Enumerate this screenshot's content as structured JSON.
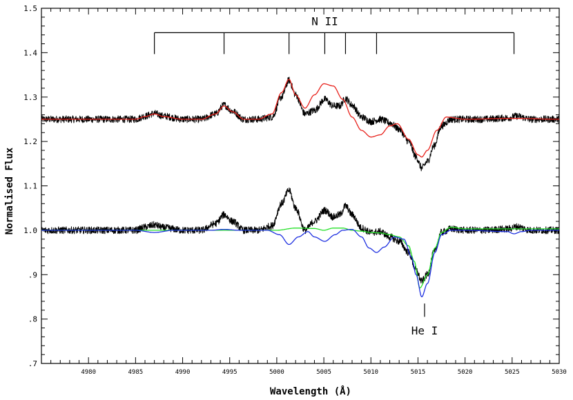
{
  "chart_data": {
    "type": "line",
    "xlabel": "Wavelength (Å)",
    "ylabel": "Normalised Flux",
    "xlim": [
      4975,
      5030
    ],
    "ylim": [
      0.7,
      1.5
    ],
    "x_ticks": [
      4980,
      4985,
      4990,
      4995,
      5000,
      5005,
      5010,
      5015,
      5020,
      5025,
      5030
    ],
    "x_tick_labels": [
      "4980",
      "4985",
      "4990",
      "4995",
      "5000",
      "5005",
      "5010",
      "5015",
      "5020",
      "5025",
      "5030"
    ],
    "y_ticks": [
      0.7,
      0.8,
      0.9,
      1.0,
      1.1,
      1.2,
      1.3,
      1.4,
      1.5
    ],
    "y_tick_labels": [
      ".7",
      ".8",
      ".9",
      "1.0",
      "1.1",
      "1.2",
      "1.3",
      "1.4",
      "1.5"
    ],
    "grid": false,
    "annotations": {
      "nii_label": "N II",
      "nii_bar_y": 1.445,
      "nii_lines": [
        4987.0,
        4994.4,
        5001.3,
        5005.1,
        5007.3,
        5010.6,
        5025.2
      ],
      "hei_label": "He I",
      "hei_line": 5015.7
    },
    "series": [
      {
        "color": "#000000",
        "x": [
          4975.0,
          4980.0,
          4985.0,
          4986.0,
          4987.0,
          4988.0,
          4990.0,
          4992.0,
          4993.5,
          4994.4,
          4995.3,
          4996.5,
          4998.0,
          4999.5,
          5000.5,
          5001.3,
          5002.0,
          5003.0,
          5004.0,
          5005.1,
          5006.0,
          5006.7,
          5007.3,
          5008.0,
          5009.0,
          5010.0,
          5011.0,
          5012.0,
          5013.0,
          5014.0,
          5014.8,
          5015.4,
          5016.0,
          5016.7,
          5017.5,
          5018.5,
          5020.0,
          5022.0,
          5024.5,
          5025.5,
          5027.0,
          5030.0
        ],
        "values": [
          1.25,
          1.25,
          1.25,
          1.257,
          1.263,
          1.257,
          1.25,
          1.25,
          1.262,
          1.282,
          1.268,
          1.25,
          1.25,
          1.255,
          1.3,
          1.338,
          1.305,
          1.262,
          1.27,
          1.295,
          1.28,
          1.28,
          1.297,
          1.282,
          1.255,
          1.245,
          1.25,
          1.242,
          1.228,
          1.2,
          1.165,
          1.14,
          1.155,
          1.19,
          1.235,
          1.25,
          1.25,
          1.25,
          1.253,
          1.257,
          1.25,
          1.25
        ]
      },
      {
        "color": "#e8201a",
        "x": [
          4975.0,
          4980.0,
          4985.0,
          4986.0,
          4987.0,
          4988.0,
          4990.0,
          4992.0,
          4993.5,
          4994.4,
          4995.3,
          4996.5,
          4998.0,
          4999.5,
          5000.5,
          5001.3,
          5002.0,
          5003.0,
          5004.0,
          5005.0,
          5006.0,
          5007.0,
          5008.0,
          5009.0,
          5010.0,
          5011.0,
          5012.0,
          5012.8,
          5014.0,
          5015.0,
          5015.4,
          5016.0,
          5017.0,
          5018.0,
          5020.0,
          5025.0,
          5030.0
        ],
        "values": [
          1.25,
          1.25,
          1.25,
          1.256,
          1.262,
          1.256,
          1.25,
          1.25,
          1.262,
          1.28,
          1.267,
          1.25,
          1.25,
          1.262,
          1.31,
          1.34,
          1.305,
          1.275,
          1.305,
          1.33,
          1.325,
          1.295,
          1.255,
          1.225,
          1.21,
          1.215,
          1.235,
          1.24,
          1.205,
          1.17,
          1.165,
          1.18,
          1.225,
          1.255,
          1.25,
          1.252,
          1.25
        ]
      },
      {
        "color": "#000000",
        "x": [
          4975.0,
          4980.0,
          4985.0,
          4986.0,
          4987.0,
          4988.0,
          4990.0,
          4992.0,
          4993.5,
          4994.4,
          4995.3,
          4996.5,
          4998.0,
          4999.5,
          5000.5,
          5001.3,
          5002.0,
          5003.0,
          5004.0,
          5005.1,
          5006.0,
          5006.7,
          5007.3,
          5008.0,
          5009.0,
          5010.0,
          5011.0,
          5012.0,
          5013.0,
          5014.0,
          5014.8,
          5015.4,
          5016.0,
          5016.7,
          5017.5,
          5018.5,
          5020.0,
          5022.0,
          5024.5,
          5025.5,
          5027.0,
          5030.0
        ],
        "values": [
          1.0,
          1.0,
          1.0,
          1.007,
          1.012,
          1.006,
          1.0,
          1.0,
          1.015,
          1.035,
          1.02,
          1.0,
          1.0,
          1.01,
          1.06,
          1.09,
          1.05,
          1.0,
          1.02,
          1.045,
          1.03,
          1.035,
          1.055,
          1.035,
          1.005,
          0.995,
          0.997,
          0.985,
          0.975,
          0.95,
          0.91,
          0.885,
          0.9,
          0.95,
          0.995,
          1.003,
          1.0,
          1.0,
          1.003,
          1.008,
          1.0,
          1.0
        ]
      },
      {
        "color": "#22e026",
        "x": [
          4975.0,
          4990.0,
          5000.0,
          5002.0,
          5004.0,
          5005.0,
          5006.0,
          5007.0,
          5008.0,
          5009.0,
          5010.0,
          5011.0,
          5012.0,
          5013.0,
          5014.0,
          5014.6,
          5015.2,
          5016.0,
          5016.8,
          5017.5,
          5018.5,
          5020.0,
          5030.0
        ],
        "values": [
          1.0,
          1.0,
          1.0,
          1.005,
          1.004,
          1.0,
          1.005,
          1.005,
          1.0,
          0.998,
          0.995,
          0.994,
          0.99,
          0.985,
          0.965,
          0.93,
          0.87,
          0.9,
          0.96,
          0.995,
          1.007,
          1.003,
          1.003
        ]
      },
      {
        "color": "#1c2ee0",
        "x": [
          4975.0,
          4985.0,
          4987.0,
          4989.0,
          4993.0,
          4994.4,
          4996.0,
          4999.0,
          5000.3,
          5001.3,
          5002.3,
          5003.3,
          5004.0,
          5005.1,
          5006.2,
          5007.0,
          5008.0,
          5009.0,
          5009.8,
          5010.6,
          5011.4,
          5012.5,
          5013.5,
          5014.3,
          5014.8,
          5015.4,
          5016.0,
          5016.8,
          5017.5,
          5018.5,
          5020.0,
          5024.5,
          5025.2,
          5026.0,
          5027.0,
          5030.0
        ],
        "values": [
          1.0,
          1.0,
          0.995,
          1.0,
          1.0,
          1.002,
          1.0,
          1.0,
          0.99,
          0.968,
          0.985,
          0.997,
          0.985,
          0.975,
          0.99,
          1.0,
          1.002,
          0.985,
          0.96,
          0.95,
          0.962,
          0.985,
          0.98,
          0.94,
          0.9,
          0.85,
          0.88,
          0.95,
          0.99,
          1.0,
          1.0,
          0.997,
          0.992,
          0.997,
          1.0,
          1.0
        ]
      }
    ]
  }
}
